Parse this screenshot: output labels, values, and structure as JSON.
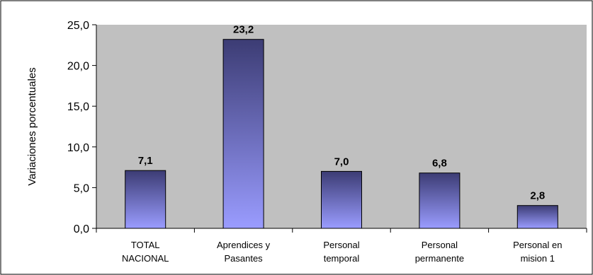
{
  "chart_data": {
    "type": "bar",
    "categories": [
      [
        "TOTAL",
        "NACIONAL"
      ],
      [
        "Aprendices y",
        "Pasantes"
      ],
      [
        "Personal",
        "temporal"
      ],
      [
        "Personal",
        "permanente"
      ],
      [
        "Personal en",
        "mision 1"
      ]
    ],
    "values": [
      7.1,
      23.2,
      7.0,
      6.8,
      2.8
    ],
    "value_labels": [
      "7,1",
      "23,2",
      "7,0",
      "6,8",
      "2,8"
    ],
    "title": "",
    "xlabel": "",
    "ylabel": "Variaciones porcentuales",
    "ylim": [
      0,
      25
    ],
    "yticks": [
      0,
      5,
      10,
      15,
      20,
      25
    ],
    "ytick_labels": [
      "0,0",
      "5,0",
      "10,0",
      "15,0",
      "20,0",
      "25,0"
    ],
    "grid": false,
    "legend": "none",
    "colors": {
      "plot_background": "#c0c0c0",
      "bar_top": "#3c3c74",
      "bar_bottom": "#9a9cff",
      "bar_outline": "#000000",
      "frame": "#000000"
    }
  }
}
